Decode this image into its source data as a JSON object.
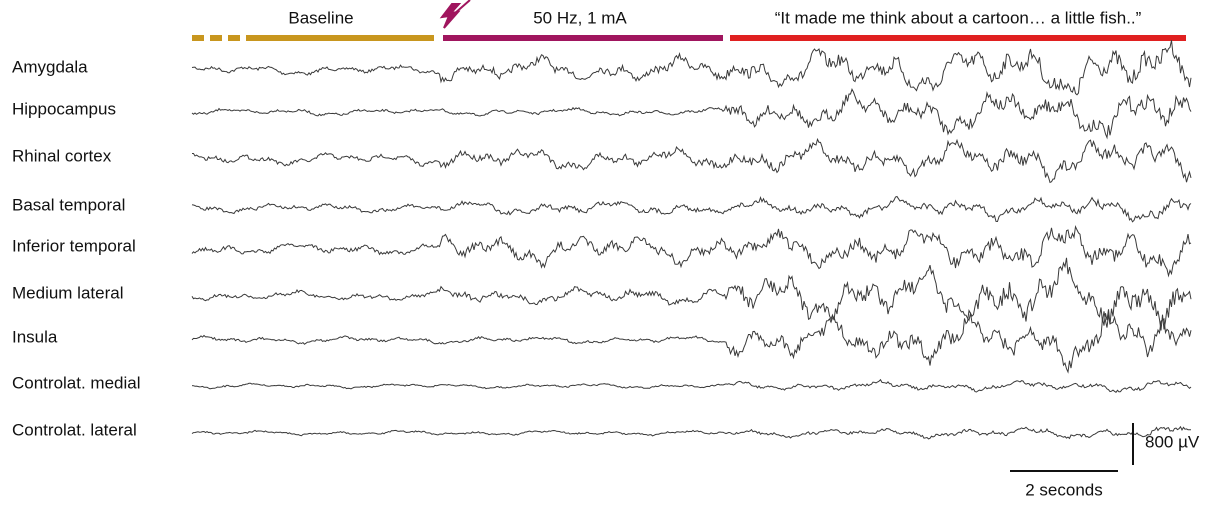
{
  "phases": [
    {
      "label": "Baseline",
      "color": "#c8961e"
    },
    {
      "label": "50 Hz, 1 mA",
      "color": "#a0155e"
    },
    {
      "label": "“It made me think about a cartoon… a little fish..”",
      "color": "#e02020"
    }
  ],
  "channels": [
    "Amygdala",
    "Hippocampus",
    "Rhinal cortex",
    "Basal temporal",
    "Inferior temporal",
    "Medium lateral",
    "Insula",
    "Controlat. medial",
    "Controlat. lateral"
  ],
  "scale_bars": {
    "voltage": "800 µV",
    "time": "2 seconds"
  }
}
